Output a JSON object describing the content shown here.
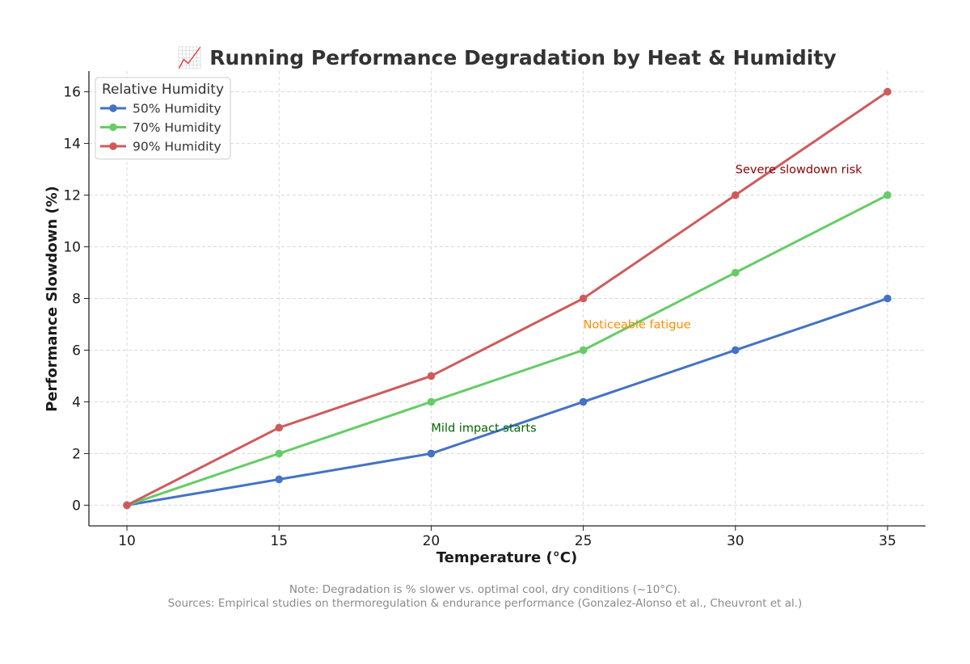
{
  "chart_data": {
    "type": "line",
    "title": "📈 Running Performance Degradation by Heat & Humidity",
    "xlabel": "Temperature (°C)",
    "ylabel": "Performance Slowdown (%)",
    "x": [
      10,
      15,
      20,
      25,
      30,
      35
    ],
    "xlim": [
      8.75,
      36.25
    ],
    "ylim": [
      -0.8,
      16.8
    ],
    "xticks": [
      10,
      15,
      20,
      25,
      30,
      35
    ],
    "yticks": [
      0,
      2,
      4,
      6,
      8,
      10,
      12,
      14,
      16
    ],
    "grid": true,
    "legend": {
      "title": "Relative Humidity",
      "placement": "top-left"
    },
    "series": [
      {
        "name": "50% Humidity",
        "color": "#4472c4",
        "values": [
          0,
          1,
          2,
          4,
          6,
          8
        ]
      },
      {
        "name": "70% Humidity",
        "color": "#66cc66",
        "values": [
          0,
          2,
          4,
          6,
          9,
          12
        ]
      },
      {
        "name": "90% Humidity",
        "color": "#d05a5a",
        "values": [
          0,
          3,
          5,
          8,
          12,
          16
        ]
      }
    ],
    "annotations": [
      {
        "text": "Mild impact starts",
        "x": 20,
        "y": 3,
        "color": "#006400"
      },
      {
        "text": "Noticeable fatigue",
        "x": 25,
        "y": 7,
        "color": "#ff8c00"
      },
      {
        "text": "Severe slowdown risk",
        "x": 30,
        "y": 13,
        "color": "#8b0000"
      }
    ]
  },
  "notes": {
    "line1": "Note: Degradation is % slower vs. optimal cool, dry conditions (~10°C).",
    "line2": "Sources: Empirical studies on thermoregulation & endurance performance (Gonzalez-Alonso et al., Cheuvront et al.)"
  }
}
